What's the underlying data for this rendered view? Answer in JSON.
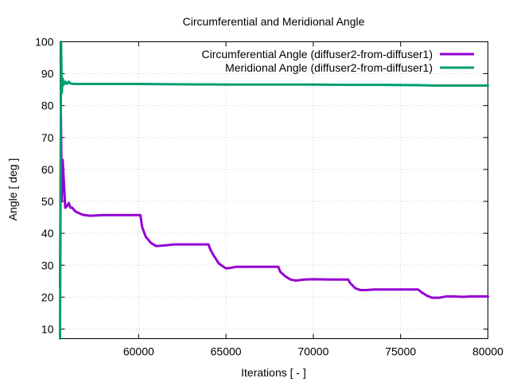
{
  "chart_data": {
    "type": "line",
    "title": "Circumferential and Meridional Angle",
    "xlabel": "Iterations [ - ]",
    "ylabel": "Angle [ deg ]",
    "xlim": [
      55500,
      80000
    ],
    "ylim": [
      7,
      100
    ],
    "x_ticks": [
      60000,
      65000,
      70000,
      75000,
      80000
    ],
    "y_ticks": [
      10,
      20,
      30,
      40,
      50,
      60,
      70,
      80,
      90,
      100
    ],
    "grid": true,
    "legend_position": "top-right",
    "series": [
      {
        "name": "Circumferential Angle (diffuser2-from-diffuser1)",
        "color": "#9400d3",
        "points": [
          [
            55500,
            23
          ],
          [
            55550,
            77
          ],
          [
            55600,
            50
          ],
          [
            55650,
            63
          ],
          [
            55700,
            58
          ],
          [
            55800,
            48
          ],
          [
            55900,
            48.5
          ],
          [
            56000,
            49.5
          ],
          [
            56100,
            48
          ],
          [
            56200,
            48
          ],
          [
            56350,
            47
          ],
          [
            56500,
            46.5
          ],
          [
            56800,
            45.8
          ],
          [
            57200,
            45.5
          ],
          [
            58000,
            45.7
          ],
          [
            59000,
            45.7
          ],
          [
            60100,
            45.7
          ],
          [
            60200,
            42
          ],
          [
            60400,
            39
          ],
          [
            60700,
            37
          ],
          [
            61000,
            36
          ],
          [
            61500,
            36.2
          ],
          [
            62000,
            36.5
          ],
          [
            63000,
            36.5
          ],
          [
            64000,
            36.5
          ],
          [
            64100,
            35
          ],
          [
            64300,
            33
          ],
          [
            64600,
            30.5
          ],
          [
            65000,
            29
          ],
          [
            65300,
            29.2
          ],
          [
            65600,
            29.5
          ],
          [
            66500,
            29.5
          ],
          [
            68000,
            29.5
          ],
          [
            68100,
            28
          ],
          [
            68400,
            26.5
          ],
          [
            68700,
            25.5
          ],
          [
            69000,
            25.2
          ],
          [
            69500,
            25.5
          ],
          [
            70000,
            25.6
          ],
          [
            71000,
            25.5
          ],
          [
            72000,
            25.5
          ],
          [
            72100,
            24.5
          ],
          [
            72400,
            22.8
          ],
          [
            72700,
            22.2
          ],
          [
            73000,
            22.2
          ],
          [
            73500,
            22.4
          ],
          [
            74000,
            22.4
          ],
          [
            75000,
            22.4
          ],
          [
            76000,
            22.4
          ],
          [
            76200,
            21.5
          ],
          [
            76500,
            20.5
          ],
          [
            76800,
            19.8
          ],
          [
            77200,
            19.8
          ],
          [
            77600,
            20.2
          ],
          [
            78000,
            20.2
          ],
          [
            78600,
            20.1
          ],
          [
            79000,
            20.2
          ],
          [
            80000,
            20.2
          ]
        ]
      },
      {
        "name": "Meridional Angle (diffuser2-from-diffuser1)",
        "color": "#009e73",
        "points": [
          [
            55500,
            7
          ],
          [
            55560,
            100
          ],
          [
            55600,
            84
          ],
          [
            55650,
            88.5
          ],
          [
            55700,
            86.5
          ],
          [
            55800,
            87.5
          ],
          [
            55900,
            86.8
          ],
          [
            56000,
            87.5
          ],
          [
            56100,
            86.9
          ],
          [
            56300,
            86.8
          ],
          [
            57000,
            86.8
          ],
          [
            60000,
            86.8
          ],
          [
            62000,
            86.7
          ],
          [
            65000,
            86.6
          ],
          [
            70000,
            86.6
          ],
          [
            72000,
            86.5
          ],
          [
            74000,
            86.5
          ],
          [
            76000,
            86.4
          ],
          [
            77000,
            86.3
          ],
          [
            80000,
            86.3
          ]
        ]
      }
    ]
  }
}
